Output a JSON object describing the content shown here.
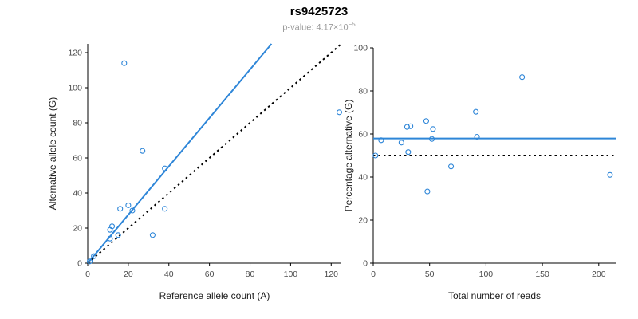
{
  "header": {
    "title": "rs9425723",
    "pvalue_label": "p-value: ",
    "pvalue_base": "4.17×10",
    "pvalue_exp": "−5"
  },
  "accent_color": "#2e86d8",
  "chart_data": [
    {
      "type": "scatter",
      "name": "allele-counts",
      "xlabel": "Reference allele count (A)",
      "ylabel": "Alternative allele count (G)",
      "xlim": [
        0,
        125
      ],
      "ylim": [
        0,
        125
      ],
      "xticks": [
        0,
        20,
        40,
        60,
        80,
        100,
        120
      ],
      "yticks": [
        0,
        20,
        40,
        60,
        80,
        100,
        120
      ],
      "grid": false,
      "legend": "none",
      "point_color": "#2e86d8",
      "points": [
        [
          18,
          114
        ],
        [
          27,
          64
        ],
        [
          38,
          54
        ],
        [
          20,
          33
        ],
        [
          16,
          31
        ],
        [
          38,
          31
        ],
        [
          22,
          30
        ],
        [
          12,
          21
        ],
        [
          11,
          19
        ],
        [
          15,
          16
        ],
        [
          32,
          16
        ],
        [
          11,
          14
        ],
        [
          124,
          86
        ],
        [
          1,
          1
        ],
        [
          3,
          4
        ]
      ],
      "lines": [
        {
          "name": "fit-line",
          "type": "ab",
          "a": 0,
          "b": 1.38,
          "color": "#2e86d8",
          "dash": "",
          "width": 2
        },
        {
          "name": "identity-line",
          "type": "ab",
          "a": 0,
          "b": 1,
          "color": "#000000",
          "dash": "2.5,4",
          "width": 2
        }
      ]
    },
    {
      "type": "scatter",
      "name": "percentage-alternative",
      "xlabel": "Total number of reads",
      "ylabel": "Percentage alternative (G)",
      "xlim": [
        0,
        215
      ],
      "ylim": [
        0,
        100
      ],
      "xticks": [
        0,
        50,
        100,
        150,
        200
      ],
      "yticks": [
        0,
        20,
        40,
        60,
        80,
        100
      ],
      "grid": false,
      "legend": "none",
      "point_color": "#2e86d8",
      "points": [
        [
          132,
          86.4
        ],
        [
          91,
          70.3
        ],
        [
          92,
          58.7
        ],
        [
          53,
          62.3
        ],
        [
          47,
          66.0
        ],
        [
          69,
          44.9
        ],
        [
          52,
          57.7
        ],
        [
          33,
          63.6
        ],
        [
          30,
          63.3
        ],
        [
          31,
          51.6
        ],
        [
          48,
          33.3
        ],
        [
          25,
          56.0
        ],
        [
          210,
          41.0
        ],
        [
          2,
          50.0
        ],
        [
          7,
          57.1
        ]
      ],
      "lines": [
        {
          "name": "mean-percentage-line",
          "type": "h",
          "y": 57.9,
          "color": "#2e86d8",
          "dash": "",
          "width": 2
        },
        {
          "name": "fifty-percent-line",
          "type": "h",
          "y": 50,
          "color": "#000000",
          "dash": "2.5,4",
          "width": 2
        }
      ]
    }
  ]
}
